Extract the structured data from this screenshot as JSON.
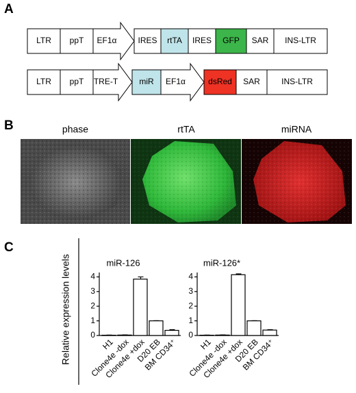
{
  "panel_labels": [
    "A",
    "B",
    "C"
  ],
  "constructs": [
    {
      "elements": [
        {
          "label": "LTR",
          "color": "#ffffff"
        },
        {
          "label": "ppT",
          "color": "#ffffff"
        },
        {
          "label": "EF1α",
          "color": "#ffffff",
          "shape": "arrow"
        },
        {
          "label": "IRES",
          "color": "#ffffff"
        },
        {
          "label": "rtTA",
          "color": "#bfe4ea"
        },
        {
          "label": "IRES",
          "color": "#ffffff"
        },
        {
          "label": "GFP",
          "color": "#3cb54a"
        },
        {
          "label": "SAR",
          "color": "#ffffff"
        },
        {
          "label": "INS-LTR",
          "color": "#ffffff"
        }
      ]
    },
    {
      "elements": [
        {
          "label": "LTR",
          "color": "#ffffff"
        },
        {
          "label": "ppT",
          "color": "#ffffff"
        },
        {
          "label": "TRE-T",
          "color": "#ffffff",
          "shape": "arrow"
        },
        {
          "label": "miR",
          "color": "#bfe4ea"
        },
        {
          "label": "EF1α",
          "color": "#ffffff",
          "shape": "arrow"
        },
        {
          "label": "dsRed",
          "color": "#ee3224"
        },
        {
          "label": "SAR",
          "color": "#ffffff"
        },
        {
          "label": "INS-LTR",
          "color": "#ffffff"
        }
      ]
    }
  ],
  "images": [
    {
      "label": "phase"
    },
    {
      "label": "rtTA"
    },
    {
      "label": "miRNA"
    }
  ],
  "y_axis_label": "Relative expression levels",
  "chart_data": [
    {
      "type": "bar",
      "title": "miR-126",
      "color": "#ffffff",
      "categories": [
        "H1",
        "Clone4e -dox",
        "Clone4e +dox",
        "D20 EB",
        "BM CD34⁺"
      ],
      "values": [
        0.02,
        0.03,
        3.85,
        1.0,
        0.35
      ],
      "errors": [
        0.01,
        0.01,
        0.15,
        0.01,
        0.05
      ],
      "ylim": [
        0,
        4.3
      ],
      "yticks": [
        0,
        1,
        2,
        3,
        4
      ]
    },
    {
      "type": "bar",
      "title": "miR-126*",
      "color": "#ffffff",
      "categories": [
        "H1",
        "Clone4e -dox",
        "Clone4e +dox",
        "D20 EB",
        "BM CD34⁺"
      ],
      "values": [
        0.02,
        0.03,
        4.15,
        1.0,
        0.37
      ],
      "errors": [
        0.01,
        0.01,
        0.06,
        0.01,
        0.03
      ],
      "ylim": [
        0,
        4.3
      ],
      "yticks": [
        0,
        1,
        2,
        3,
        4
      ]
    }
  ]
}
